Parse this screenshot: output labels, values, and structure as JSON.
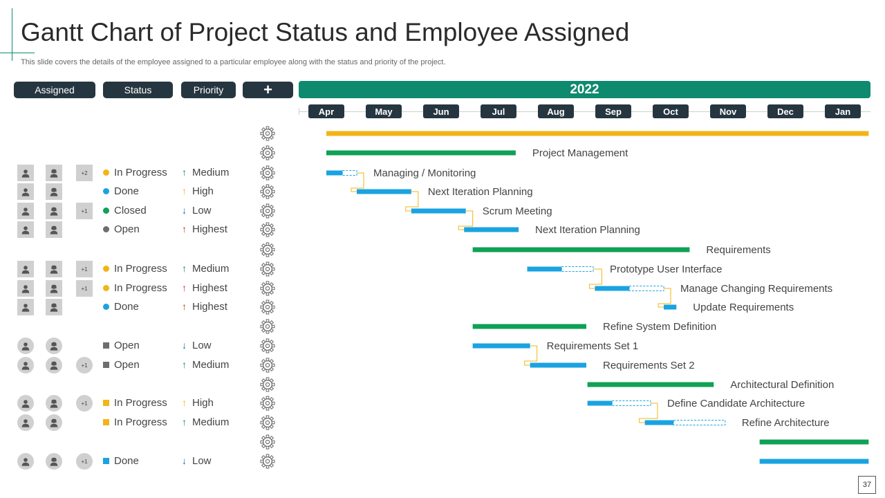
{
  "slide": {
    "title": "Gantt Chart of Project Status and Employee Assigned",
    "subtitle": "This slide covers the details of the employee assigned to a particular employee along with the status and priority of the project.",
    "page_number": "37",
    "accent_color": "#0e8a6e",
    "dark_color": "#263640"
  },
  "header": {
    "assigned": "Assigned",
    "status": "Status",
    "priority": "Priority",
    "add": "+",
    "year": "2022"
  },
  "colors": {
    "yellow": "#f2b517",
    "green": "#0fa155",
    "blue": "#1aa3e0",
    "connector": "#f2b517",
    "status_gray": "#6e6e6e"
  },
  "rows": [
    {
      "people": 0,
      "extra": "",
      "status": "",
      "priority": "",
      "gear": true
    },
    {
      "people": 0,
      "extra": "",
      "status": "",
      "priority": "",
      "gear": true
    },
    {
      "people": 2,
      "shape": "square",
      "extra": "+2",
      "status": "In Progress",
      "status_color": "#f2b517",
      "status_shape": "dot",
      "priority": "Medium",
      "arrow": "↑",
      "arrow_color": "#0e8a6e",
      "gear": true
    },
    {
      "people": 2,
      "shape": "square",
      "extra": "",
      "status": "Done",
      "status_color": "#1aa3e0",
      "status_shape": "dot",
      "priority": "High",
      "arrow": "↑",
      "arrow_color": "#f2b517",
      "gear": true
    },
    {
      "people": 2,
      "shape": "square",
      "extra": "+1",
      "status": "Closed",
      "status_color": "#0fa155",
      "status_shape": "dot",
      "priority": "Low",
      "arrow": "↓",
      "arrow_color": "#1a6fa3",
      "gear": true
    },
    {
      "people": 2,
      "shape": "square",
      "extra": "",
      "status": "Open",
      "status_color": "#6e6e6e",
      "status_shape": "dot",
      "priority": "Highest",
      "arrow": "↑",
      "arrow_color": "#c0392b",
      "gear": true
    },
    {
      "people": 0,
      "extra": "",
      "status": "",
      "priority": "",
      "gear": true
    },
    {
      "people": 2,
      "shape": "square",
      "extra": "+1",
      "status": "In Progress",
      "status_color": "#f2b517",
      "status_shape": "dot",
      "priority": "Medium",
      "arrow": "↑",
      "arrow_color": "#0e8a6e",
      "gear": true
    },
    {
      "people": 2,
      "shape": "square",
      "extra": "+1",
      "status": "In Progress",
      "status_color": "#f2b517",
      "status_shape": "dot",
      "priority": "Highest",
      "arrow": "↑",
      "arrow_color": "#c0392b",
      "gear": true
    },
    {
      "people": 2,
      "shape": "square",
      "extra": "",
      "status": "Done",
      "status_color": "#1aa3e0",
      "status_shape": "dot",
      "priority": "Highest",
      "arrow": "↑",
      "arrow_color": "#c0392b",
      "gear": true
    },
    {
      "people": 0,
      "extra": "",
      "status": "",
      "priority": "",
      "gear": true
    },
    {
      "people": 2,
      "shape": "round",
      "extra": "",
      "status": "Open",
      "status_color": "#6e6e6e",
      "status_shape": "square",
      "priority": "Low",
      "arrow": "↓",
      "arrow_color": "#1a6fa3",
      "gear": true
    },
    {
      "people": 2,
      "shape": "round",
      "extra": "+1",
      "status": "Open",
      "status_color": "#6e6e6e",
      "status_shape": "square",
      "priority": "Medium",
      "arrow": "↑",
      "arrow_color": "#0e8a6e",
      "gear": true
    },
    {
      "people": 0,
      "extra": "",
      "status": "",
      "priority": "",
      "gear": true
    },
    {
      "people": 2,
      "shape": "round",
      "extra": "+1",
      "status": "In Progress",
      "status_color": "#f2b517",
      "status_shape": "square",
      "priority": "High",
      "arrow": "↑",
      "arrow_color": "#f2b517",
      "gear": true
    },
    {
      "people": 2,
      "shape": "round",
      "extra": "",
      "status": "In Progress",
      "status_color": "#f2b517",
      "status_shape": "square",
      "priority": "Medium",
      "arrow": "↑",
      "arrow_color": "#0e8a6e",
      "gear": true
    },
    {
      "people": 0,
      "extra": "",
      "status": "",
      "priority": "",
      "gear": true
    },
    {
      "people": 2,
      "shape": "round",
      "extra": "+1",
      "status": "Done",
      "status_color": "#1aa3e0",
      "status_shape": "square",
      "priority": "Low",
      "arrow": "↓",
      "arrow_color": "#1a6fa3",
      "gear": true
    }
  ],
  "chart_data": {
    "type": "gantt",
    "title": "2022",
    "months": [
      "Apr",
      "May",
      "Jun",
      "Jul",
      "Aug",
      "Sep",
      "Oct",
      "Nov",
      "Dec",
      "Jan"
    ],
    "tasks": [
      {
        "row": 0,
        "name": "",
        "start": 0.0,
        "end": 9.45,
        "color": "yellow",
        "planned_end": null,
        "connect_from_prev": false
      },
      {
        "row": 1,
        "name": "Project Management",
        "start": 0.0,
        "end": 3.3,
        "color": "green",
        "planned_end": null,
        "connect_from_prev": false
      },
      {
        "row": 2,
        "name": "Managing / Monitoring",
        "start": 0.0,
        "end": 0.28,
        "color": "blue",
        "planned_end": 0.53,
        "connect_from_prev": false
      },
      {
        "row": 3,
        "name": "Next Iteration Planning",
        "start": 0.53,
        "end": 1.48,
        "color": "blue",
        "planned_end": null,
        "connect_from_prev": true
      },
      {
        "row": 4,
        "name": "Scrum Meeting",
        "start": 1.48,
        "end": 2.43,
        "color": "blue",
        "planned_end": null,
        "connect_from_prev": true
      },
      {
        "row": 5,
        "name": "Next Iteration Planning",
        "start": 2.4,
        "end": 3.35,
        "color": "blue",
        "planned_end": null,
        "connect_from_prev": true
      },
      {
        "row": 6,
        "name": "Requirements",
        "start": 2.55,
        "end": 6.33,
        "color": "green",
        "planned_end": null,
        "connect_from_prev": false
      },
      {
        "row": 7,
        "name": "Prototype User Interface",
        "start": 3.5,
        "end": 4.1,
        "color": "blue",
        "planned_end": 4.65,
        "connect_from_prev": false
      },
      {
        "row": 8,
        "name": "Manage Changing Requirements",
        "start": 4.68,
        "end": 5.28,
        "color": "blue",
        "planned_end": 5.88,
        "connect_from_prev": true
      },
      {
        "row": 9,
        "name": "Update Requirements",
        "start": 5.88,
        "end": 6.1,
        "color": "blue",
        "planned_end": null,
        "connect_from_prev": true
      },
      {
        "row": 10,
        "name": "Refine System Definition",
        "start": 2.55,
        "end": 4.53,
        "color": "green",
        "planned_end": null,
        "connect_from_prev": false
      },
      {
        "row": 11,
        "name": "Requirements Set 1",
        "start": 2.55,
        "end": 3.55,
        "color": "blue",
        "planned_end": null,
        "connect_from_prev": false
      },
      {
        "row": 12,
        "name": "Requirements Set 2",
        "start": 3.55,
        "end": 4.53,
        "color": "blue",
        "planned_end": null,
        "connect_from_prev": true
      },
      {
        "row": 13,
        "name": "Architectural Definition",
        "start": 4.55,
        "end": 6.75,
        "color": "green",
        "planned_end": null,
        "connect_from_prev": false
      },
      {
        "row": 14,
        "name": "Define Candidate Architecture",
        "start": 4.55,
        "end": 4.98,
        "color": "blue",
        "planned_end": 5.65,
        "connect_from_prev": false
      },
      {
        "row": 15,
        "name": "Refine Architecture",
        "start": 5.55,
        "end": 6.05,
        "color": "blue",
        "planned_end": 6.95,
        "connect_from_prev": true
      },
      {
        "row": 16,
        "name": "",
        "start": 7.55,
        "end": 9.45,
        "color": "green",
        "planned_end": null,
        "connect_from_prev": false
      },
      {
        "row": 17,
        "name": "",
        "start": 7.55,
        "end": 9.45,
        "color": "blue",
        "planned_end": null,
        "connect_from_prev": false
      }
    ]
  }
}
